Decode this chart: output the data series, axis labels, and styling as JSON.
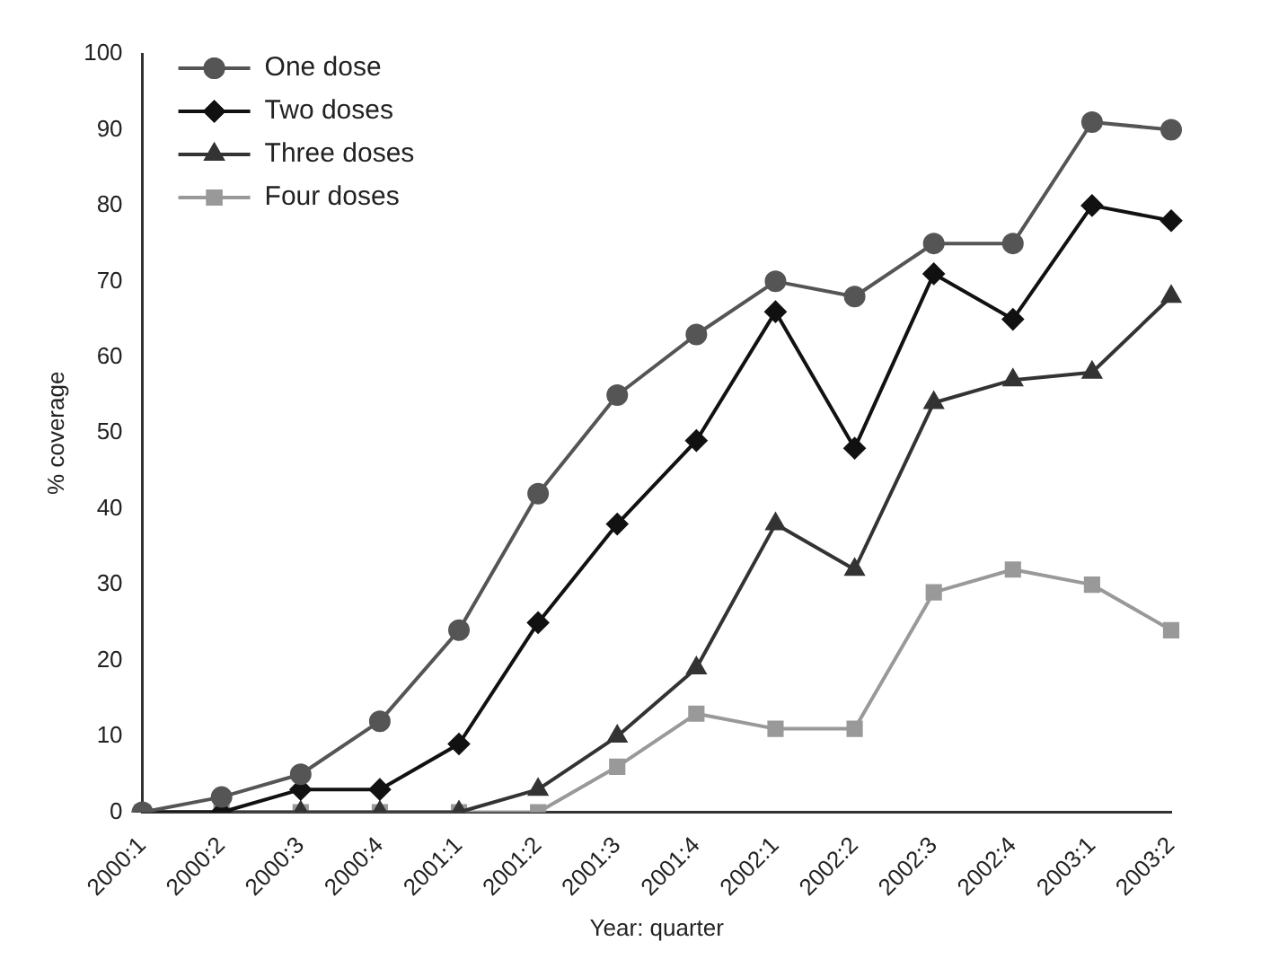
{
  "chart_data": {
    "type": "line",
    "xlabel": "Year: quarter",
    "ylabel": "% coverage",
    "categories": [
      "2000:1",
      "2000:2",
      "2000:3",
      "2000:4",
      "2001:1",
      "2001:2",
      "2001:3",
      "2001:4",
      "2002:1",
      "2002:2",
      "2002:3",
      "2002:4",
      "2003:1",
      "2003:2"
    ],
    "series": [
      {
        "name": "One dose",
        "color": "#555555",
        "marker": "circle",
        "values": [
          0,
          2,
          5,
          12,
          24,
          42,
          55,
          63,
          70,
          68,
          75,
          75,
          91,
          90
        ]
      },
      {
        "name": "Two doses",
        "color": "#111111",
        "marker": "diamond",
        "values": [
          0,
          0,
          3,
          3,
          9,
          25,
          38,
          49,
          66,
          48,
          71,
          65,
          80,
          78
        ]
      },
      {
        "name": "Three doses",
        "color": "#333333",
        "marker": "triangle",
        "values": [
          0,
          0,
          0,
          0,
          0,
          3,
          10,
          19,
          38,
          32,
          54,
          57,
          58,
          68
        ]
      },
      {
        "name": "Four doses",
        "color": "#999999",
        "marker": "square",
        "values": [
          0,
          0,
          0,
          0,
          0,
          0,
          6,
          13,
          11,
          11,
          29,
          32,
          30,
          24
        ]
      }
    ],
    "ylim": [
      0,
      100
    ],
    "yticks": [
      0,
      10,
      20,
      30,
      40,
      50,
      60,
      70,
      80,
      90,
      100
    ],
    "grid": false,
    "legend": "top left",
    "line_style": "solid"
  }
}
